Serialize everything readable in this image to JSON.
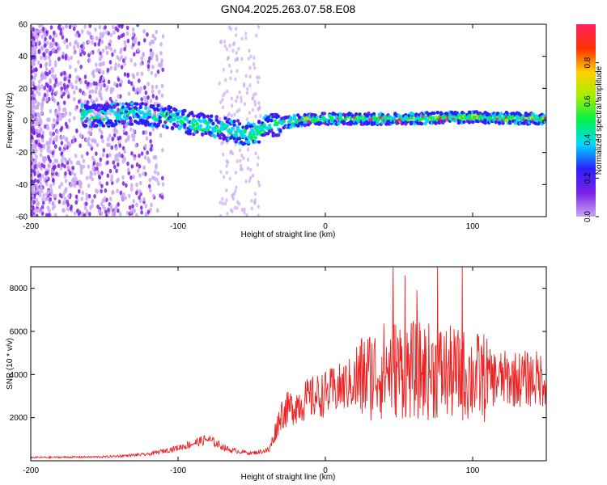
{
  "title": "GN04.2025.263.07.58.E08",
  "chart_data": [
    {
      "type": "heatmap",
      "name": "spectrogram",
      "xlabel": "Height of straight line (km)",
      "ylabel": "Frequency (Hz)",
      "xlim": [
        -200,
        150
      ],
      "ylim": [
        -60,
        60
      ],
      "xticks": [
        -200,
        -100,
        0,
        100
      ],
      "yticks": [
        -60,
        -40,
        -20,
        0,
        20,
        40,
        60
      ],
      "colorbar": {
        "label": "Normalized spectral amplitude",
        "range": [
          0.0,
          1.0
        ],
        "ticks": [
          0.0,
          0.2,
          0.4,
          0.6,
          0.8
        ],
        "colormap": [
          "#c9a8f5",
          "#7a1fe8",
          "#2a20ff",
          "#00d8ff",
          "#00f050",
          "#a0f000",
          "#ffd000",
          "#ff3000",
          "#ff2060"
        ]
      },
      "ridge": [
        {
          "x": -160,
          "y": 3
        },
        {
          "x": -130,
          "y": 4
        },
        {
          "x": -110,
          "y": 3
        },
        {
          "x": -90,
          "y": -2
        },
        {
          "x": -70,
          "y": -5
        },
        {
          "x": -50,
          "y": -9
        },
        {
          "x": -40,
          "y": -4
        },
        {
          "x": -30,
          "y": -2
        },
        {
          "x": -20,
          "y": 0
        },
        {
          "x": 0,
          "y": 1
        },
        {
          "x": 50,
          "y": 1
        },
        {
          "x": 100,
          "y": 2
        },
        {
          "x": 150,
          "y": 1
        }
      ]
    },
    {
      "type": "line",
      "name": "snr",
      "xlabel": "Height of straight line (km)",
      "ylabel": "SNR (10 * v/v)",
      "xlim": [
        -200,
        150
      ],
      "ylim": [
        0,
        9000
      ],
      "xticks": [
        -200,
        -100,
        0,
        100
      ],
      "yticks": [
        2000,
        4000,
        6000,
        8000
      ],
      "color": "#ee2222",
      "envelope": [
        {
          "x": -200,
          "y": 150
        },
        {
          "x": -150,
          "y": 180
        },
        {
          "x": -120,
          "y": 300
        },
        {
          "x": -100,
          "y": 600
        },
        {
          "x": -80,
          "y": 1000
        },
        {
          "x": -65,
          "y": 500
        },
        {
          "x": -50,
          "y": 350
        },
        {
          "x": -38,
          "y": 500
        },
        {
          "x": -30,
          "y": 2200
        },
        {
          "x": -20,
          "y": 2600
        },
        {
          "x": -10,
          "y": 2900
        },
        {
          "x": 0,
          "y": 3100
        },
        {
          "x": 15,
          "y": 3500
        },
        {
          "x": 30,
          "y": 4000
        },
        {
          "x": 45,
          "y": 4300
        },
        {
          "x": 60,
          "y": 4200
        },
        {
          "x": 80,
          "y": 4100
        },
        {
          "x": 100,
          "y": 3900
        },
        {
          "x": 120,
          "y": 3800
        },
        {
          "x": 150,
          "y": 3800
        }
      ],
      "spikes": [
        {
          "x": 46,
          "y": 9000
        },
        {
          "x": 54,
          "y": 8600
        },
        {
          "x": 62,
          "y": 7900
        },
        {
          "x": 76,
          "y": 9000
        },
        {
          "x": 93,
          "y": 9000
        }
      ]
    }
  ]
}
